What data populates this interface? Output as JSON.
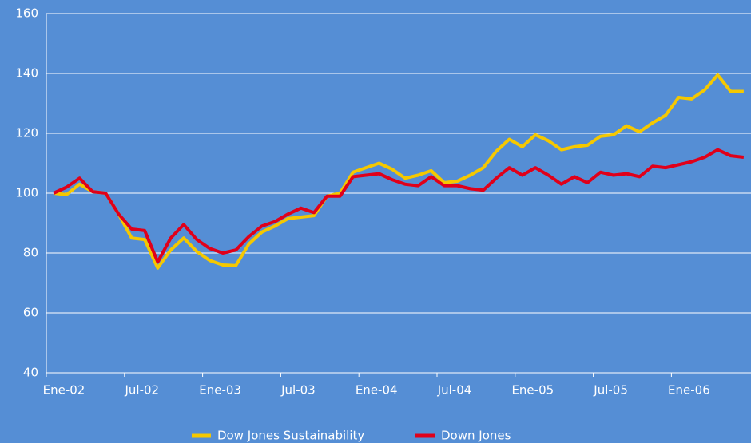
{
  "chart_data": {
    "type": "line",
    "categories": [
      "Ene-02",
      null,
      null,
      null,
      null,
      null,
      "Jul-02",
      null,
      null,
      null,
      null,
      null,
      "Ene-03",
      null,
      null,
      null,
      null,
      null,
      "Jul-03",
      null,
      null,
      null,
      null,
      null,
      "Ene-04",
      null,
      null,
      null,
      null,
      null,
      "Jul-04",
      null,
      null,
      null,
      null,
      null,
      "Ene-05",
      null,
      null,
      null,
      null,
      null,
      "Jul-05",
      null,
      null,
      null,
      null,
      null,
      "Ene-06",
      null,
      null,
      null,
      null,
      null
    ],
    "series": [
      {
        "name": "Dow Jones Sustainability",
        "color": "#f5c800",
        "values": [
          100,
          99.5,
          103,
          100.5,
          100,
          93,
          85,
          84.5,
          75,
          81,
          85,
          80.5,
          77.5,
          76,
          75.8,
          83,
          87,
          89,
          91.5,
          92,
          92.5,
          99,
          100,
          107,
          108.5,
          110,
          108,
          105,
          106,
          107.5,
          103.5,
          104,
          106,
          108.5,
          114,
          118,
          115.5,
          119.5,
          117.5,
          114.5,
          115.5,
          116,
          119,
          119.5,
          122.5,
          120.5,
          123.5,
          126,
          132,
          131.5,
          134.5,
          139.5,
          134,
          134
        ]
      },
      {
        "name": "Down Jones",
        "color": "#e0001a",
        "values": [
          100,
          102,
          105,
          100.5,
          100,
          93,
          88,
          87.5,
          77,
          85,
          89.5,
          84.5,
          81.5,
          80,
          81,
          85.5,
          89,
          90.5,
          93,
          95,
          93.5,
          99,
          99,
          105.5,
          106,
          106.5,
          104.5,
          103,
          102.5,
          105.5,
          102.5,
          102.5,
          101.5,
          101,
          105,
          108.5,
          106,
          108.5,
          106,
          103,
          105.5,
          103.5,
          107,
          106,
          106.5,
          105.5,
          109,
          108.5,
          109.5,
          110.5,
          112,
          114.5,
          112.5,
          112
        ]
      }
    ],
    "ylim": [
      40,
      160
    ],
    "yticks": [
      40,
      60,
      80,
      100,
      120,
      140,
      160
    ],
    "grid": true,
    "legend": "bottom"
  }
}
